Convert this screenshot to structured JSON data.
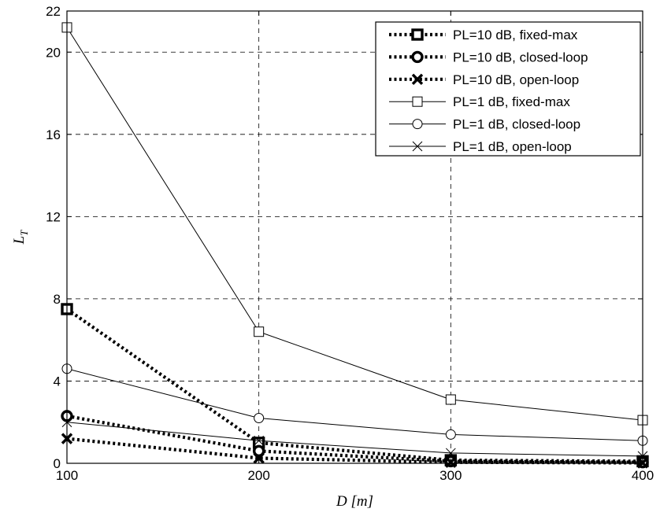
{
  "chart_data": {
    "type": "line",
    "title": "",
    "xlabel": "D [m]",
    "ylabel_main": "L",
    "ylabel_sub": "T",
    "x": [
      100,
      200,
      300,
      400
    ],
    "xlim": [
      100,
      400
    ],
    "ylim": [
      0,
      22
    ],
    "xticks": [
      100,
      200,
      300,
      400
    ],
    "yticks": [
      0,
      4,
      8,
      12,
      16,
      20,
      22
    ],
    "grid": true,
    "legend_position": "top-right",
    "series": [
      {
        "name": "PL=10 dB, fixed-max",
        "values": [
          7.5,
          1.0,
          0.15,
          0.1
        ],
        "marker": "square",
        "style": "dotted-bold"
      },
      {
        "name": "PL=10 dB, closed-loop",
        "values": [
          2.3,
          0.6,
          0.1,
          0.05
        ],
        "marker": "circle",
        "style": "dotted-bold"
      },
      {
        "name": "PL=10 dB, open-loop",
        "values": [
          1.2,
          0.25,
          0.05,
          0.02
        ],
        "marker": "x",
        "style": "dotted-bold"
      },
      {
        "name": "PL=1 dB, fixed-max",
        "values": [
          21.2,
          6.4,
          3.1,
          2.1
        ],
        "marker": "square",
        "style": "solid-thin"
      },
      {
        "name": "PL=1 dB, closed-loop",
        "values": [
          4.6,
          2.2,
          1.4,
          1.1
        ],
        "marker": "circle",
        "style": "solid-thin"
      },
      {
        "name": "PL=1 dB, open-loop",
        "values": [
          2.0,
          1.1,
          0.5,
          0.35
        ],
        "marker": "x",
        "style": "solid-thin"
      }
    ]
  }
}
